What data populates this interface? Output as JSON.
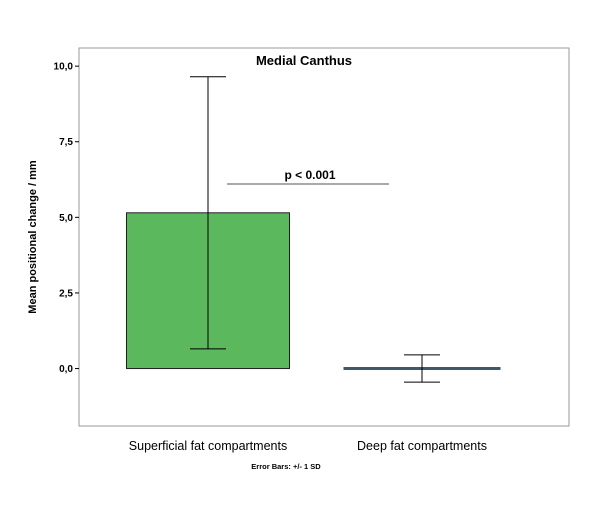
{
  "chart_data": {
    "type": "bar",
    "title": "Medial Canthus",
    "xlabel": "",
    "ylabel": "Mean positional change / mm",
    "categories": [
      "Superficial fat compartments",
      "Deep fat compartments"
    ],
    "values": [
      5.15,
      0.0
    ],
    "error_sd": [
      4.5,
      0.45
    ],
    "ylim": [
      -1.9,
      10.6
    ],
    "yticks": [
      0.0,
      2.5,
      5.0,
      7.5,
      10.0
    ],
    "ytick_labels": [
      "0,0",
      "2,5",
      "5,0",
      "7,5",
      "10,0"
    ],
    "grid": false,
    "annotation": "p < 0.001",
    "footnote": "Error Bars: +/- 1 SD",
    "colors": {
      "bar": "#5cb85c",
      "bar_edge": "#1f1f1f",
      "flat_bar": "#3d5a66",
      "frame": "#999999",
      "error_bar": "#000000"
    }
  }
}
